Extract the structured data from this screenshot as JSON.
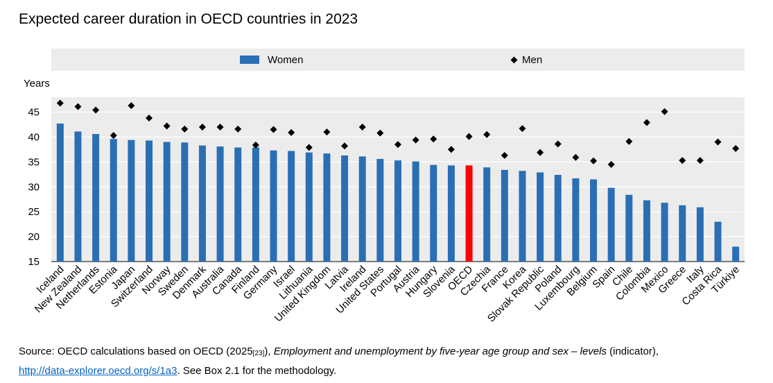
{
  "title": "Expected career duration in OECD countries in 2023",
  "legend": {
    "women": "Women",
    "men": "Men"
  },
  "y_unit_label": "Years",
  "colors": {
    "women": "#2a6fb4",
    "oecd": "#ff0000",
    "men": "#000000",
    "plot_bg": "#ececec",
    "grid": "#ffffff"
  },
  "source": {
    "prefix": "Source: OECD calculations based on OECD (2025",
    "ref": "[23]",
    "mid": "), ",
    "italic": "Employment and unemployment by five-year age group and sex – levels",
    "after_italic": " (indicator),",
    "link": "http://data-explorer.oecd.org/s/1a3",
    "suffix": ". See Box 2.1 for the methodology."
  },
  "chart_data": {
    "type": "bar",
    "title": "Expected career duration in OECD countries in 2023",
    "ylabel": "Years",
    "ylim": [
      15,
      48
    ],
    "yticks": [
      15,
      20,
      25,
      30,
      35,
      40,
      45
    ],
    "grid": true,
    "legend_position": "top",
    "highlight": "OECD",
    "categories": [
      "Iceland",
      "New Zealand",
      "Netherlands",
      "Estonia",
      "Japan",
      "Switzerland",
      "Norway",
      "Sweden",
      "Denmark",
      "Australia",
      "Canada",
      "Finland",
      "Germany",
      "Israel",
      "Lithuania",
      "United Kingdom",
      "Latvia",
      "Ireland",
      "United States",
      "Portugal",
      "Austria",
      "Hungary",
      "Slovenia",
      "OECD",
      "Czechia",
      "France",
      "Korea",
      "Slovak Republic",
      "Poland",
      "Luxembourg",
      "Belgium",
      "Spain",
      "Chile",
      "Colombia",
      "Mexico",
      "Greece",
      "Italy",
      "Costa Rica",
      "Türkiye"
    ],
    "series": [
      {
        "name": "Women",
        "type": "bar",
        "values": [
          42.7,
          41.1,
          40.6,
          39.6,
          39.4,
          39.3,
          39.0,
          38.9,
          38.3,
          38.1,
          37.9,
          37.9,
          37.3,
          37.2,
          36.9,
          36.7,
          36.3,
          36.1,
          35.6,
          35.3,
          35.1,
          34.4,
          34.3,
          34.3,
          33.9,
          33.4,
          33.2,
          32.9,
          32.4,
          31.7,
          31.5,
          29.8,
          28.4,
          27.3,
          26.8,
          26.3,
          25.9,
          23.0,
          18.0
        ]
      },
      {
        "name": "Men",
        "type": "marker",
        "values": [
          46.8,
          46.1,
          45.4,
          40.3,
          46.3,
          43.8,
          42.2,
          41.6,
          42.0,
          42.0,
          41.6,
          38.4,
          41.5,
          40.9,
          37.9,
          41.0,
          38.2,
          42.0,
          40.8,
          38.5,
          39.4,
          39.6,
          37.5,
          40.1,
          40.5,
          36.3,
          41.7,
          36.9,
          38.6,
          35.9,
          35.2,
          34.5,
          39.1,
          42.9,
          45.1,
          35.3,
          35.3,
          39.0,
          37.7
        ]
      }
    ]
  }
}
